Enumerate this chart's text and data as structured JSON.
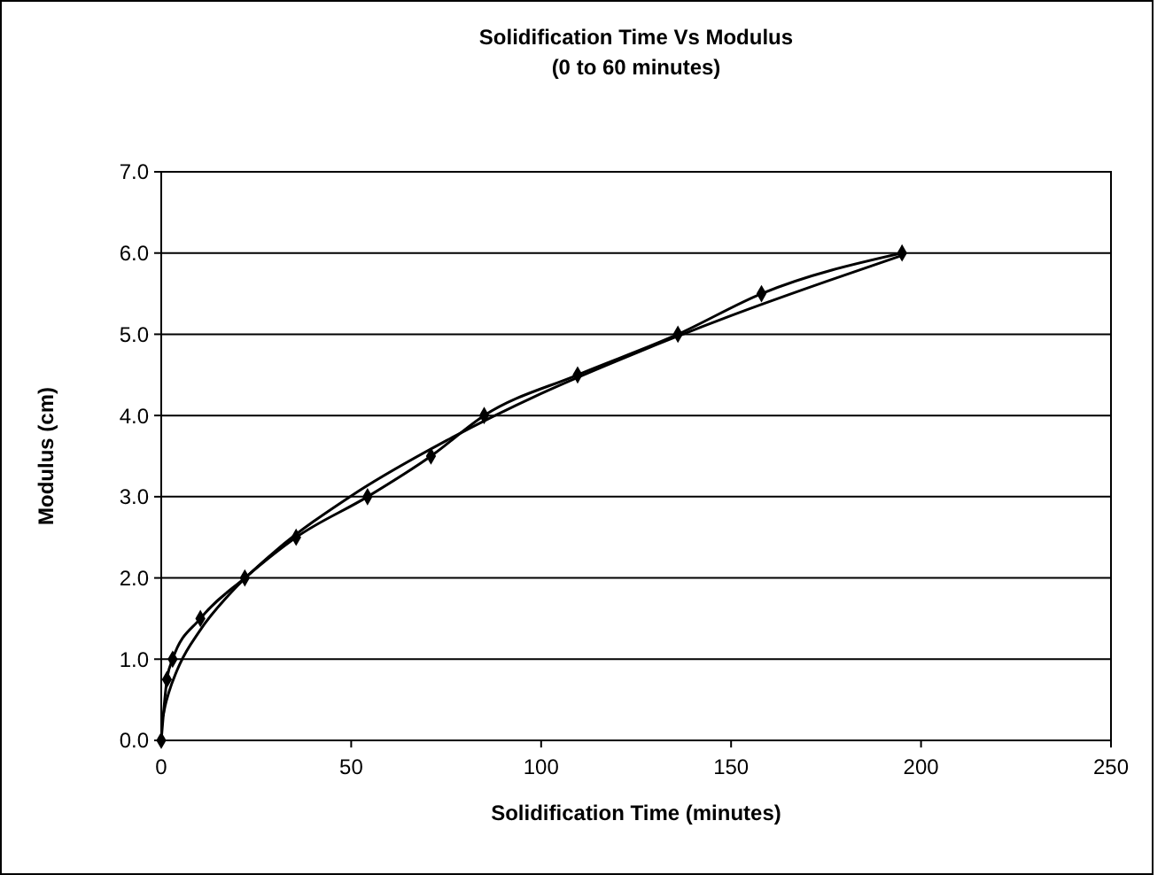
{
  "chart_data": {
    "type": "line",
    "title": "Solidification Time Vs Modulus\n(0 to 60 minutes)",
    "xlabel": "Solidification Time (minutes)",
    "ylabel": "Modulus (cm)",
    "xlim": [
      0,
      250
    ],
    "xticks": [
      0,
      50,
      100,
      150,
      200,
      250
    ],
    "ylim": [
      0,
      7
    ],
    "yticks": [
      {
        "value": 0,
        "label": "0.0"
      },
      {
        "value": 1,
        "label": "1.0"
      },
      {
        "value": 2,
        "label": "2.0"
      },
      {
        "value": 3,
        "label": "3.0"
      },
      {
        "value": 4,
        "label": "4.0"
      },
      {
        "value": 5,
        "label": "5.0"
      },
      {
        "value": 6,
        "label": "6.0"
      },
      {
        "value": 7,
        "label": "7.0"
      }
    ],
    "grid": "y",
    "series": [
      {
        "color": "#000000",
        "marker": "diamond",
        "x": [
          0,
          1.5,
          3,
          10.3,
          22,
          35.5,
          54.3,
          71,
          85,
          109.6,
          136,
          158,
          195
        ],
        "values": [
          0,
          0.75,
          1,
          1.5,
          2,
          2.5,
          3,
          3.5,
          4,
          4.5,
          5,
          5.5,
          6
        ]
      },
      {
        "color": "#000000",
        "marker": "none",
        "x": [
          0.5,
          1,
          2,
          5,
          10,
          20,
          30,
          50,
          75,
          100,
          125,
          150,
          175,
          195
        ],
        "values": [
          0.3,
          0.42,
          0.59,
          0.95,
          1.34,
          1.9,
          2.33,
          3.01,
          3.69,
          4.27,
          4.77,
          5.23,
          5.65,
          5.97
        ]
      }
    ]
  }
}
